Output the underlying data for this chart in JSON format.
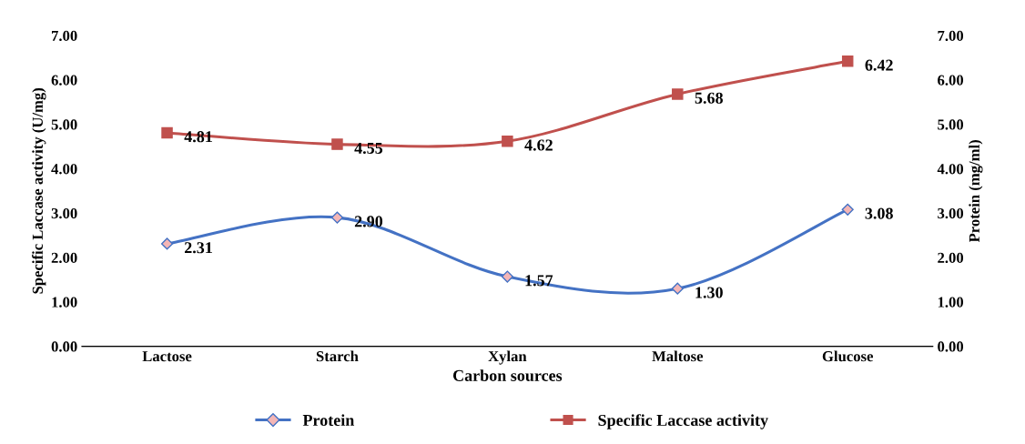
{
  "chart_data": {
    "type": "line",
    "xlabel": "Carbon sources",
    "ylabel": "Specific Laccase activity (U/mg)",
    "y2label": "Protein (mg/ml)",
    "categories": [
      "Lactose",
      "Starch",
      "Xylan",
      "Maltose",
      "Glucose"
    ],
    "series": [
      {
        "name": "Protein",
        "color": "#4472c4",
        "marker": "diamond",
        "values": [
          2.31,
          2.9,
          1.57,
          1.3,
          3.08
        ],
        "value_labels": [
          "2.31",
          "2.90",
          "1.57",
          "1.30",
          "3.08"
        ]
      },
      {
        "name": "Specific Laccase activity",
        "color": "#c0504d",
        "marker": "square",
        "values": [
          4.81,
          4.55,
          4.62,
          5.68,
          6.42
        ],
        "value_labels": [
          "4.81",
          "4.55",
          "4.62",
          "5.68",
          "6.42"
        ]
      }
    ],
    "ylim": [
      0,
      7
    ],
    "yticks": [
      {
        "value": 0,
        "label": "0.00"
      },
      {
        "value": 1,
        "label": "1.00"
      },
      {
        "value": 2,
        "label": "2.00"
      },
      {
        "value": 3,
        "label": "3.00"
      },
      {
        "value": 4,
        "label": "4.00"
      },
      {
        "value": 5,
        "label": "5.00"
      },
      {
        "value": 6,
        "label": "6.00"
      },
      {
        "value": 7,
        "label": "7.00"
      }
    ],
    "y2lim": [
      0,
      7
    ],
    "y2ticks": [
      {
        "value": 0,
        "label": "0.00"
      },
      {
        "value": 1,
        "label": "1.00"
      },
      {
        "value": 2,
        "label": "2.00"
      },
      {
        "value": 3,
        "label": "3.00"
      },
      {
        "value": 4,
        "label": "4.00"
      },
      {
        "value": 5,
        "label": "5.00"
      },
      {
        "value": 6,
        "label": "6.00"
      },
      {
        "value": 7,
        "label": "7.00"
      }
    ],
    "legend": "bottom",
    "grid": false,
    "line_style": "solid"
  }
}
